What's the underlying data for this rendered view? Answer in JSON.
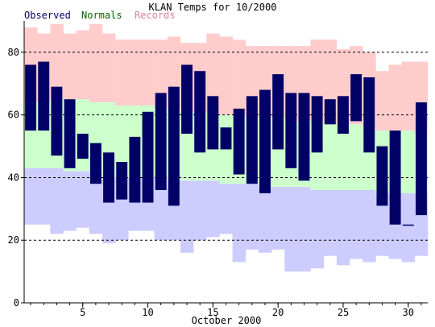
{
  "chart_data": {
    "type": "bar",
    "title": "KLAN Temps for 10/2000",
    "xlabel": "October 2000",
    "ylabel": "",
    "ylim": [
      0,
      90
    ],
    "xlim": [
      0.5,
      31.5
    ],
    "y_ticks": [
      0,
      20,
      40,
      60,
      80
    ],
    "y_tick_labels": [
      "0",
      "20",
      "40",
      "60",
      "80"
    ],
    "y_gridlines": [
      20,
      40,
      60,
      80
    ],
    "x_ticks": [
      5,
      10,
      15,
      20,
      25,
      30
    ],
    "x_tick_labels": [
      "5",
      "10",
      "15",
      "20",
      "25",
      "30"
    ],
    "days": [
      1,
      2,
      3,
      4,
      5,
      6,
      7,
      8,
      9,
      10,
      11,
      12,
      13,
      14,
      15,
      16,
      17,
      18,
      19,
      20,
      21,
      22,
      23,
      24,
      25,
      26,
      27,
      28,
      29,
      30,
      31
    ],
    "legend": [
      {
        "label": "Observed",
        "color": "#000066"
      },
      {
        "label": "Normals",
        "color": "#006600"
      },
      {
        "label": "Records",
        "color": "#e080a0"
      }
    ],
    "colors": {
      "observed": "#000066",
      "normals": "#ccffcc",
      "record_high_band": "#ffcccc",
      "record_low_band": "#ccccff",
      "grid": "#000000"
    },
    "series": [
      {
        "name": "Observed",
        "high": [
          76,
          77,
          69,
          65,
          54,
          51,
          48,
          45,
          53,
          61,
          67,
          69,
          76,
          74,
          66,
          56,
          62,
          66,
          68,
          73,
          67,
          67,
          66,
          65,
          66,
          73,
          72,
          50,
          55,
          25,
          64
        ],
        "low": [
          55,
          55,
          47,
          43,
          46,
          38,
          32,
          33,
          32,
          32,
          36,
          31,
          54,
          48,
          49,
          49,
          41,
          38,
          35,
          49,
          43,
          39,
          48,
          57,
          54,
          58,
          48,
          31,
          25,
          25,
          28
        ]
      },
      {
        "name": "Normals",
        "high": [
          64,
          64,
          65,
          65,
          65,
          64,
          64,
          63,
          63,
          63,
          62,
          62,
          61,
          61,
          60,
          60,
          60,
          59,
          59,
          59,
          58,
          58,
          58,
          57,
          57,
          57,
          56,
          55,
          55,
          55,
          54
        ],
        "low": [
          43,
          43,
          43,
          42,
          42,
          41,
          40,
          40,
          40,
          40,
          40,
          39,
          39,
          39,
          39,
          38,
          38,
          38,
          37,
          37,
          37,
          37,
          36,
          36,
          36,
          36,
          36,
          35,
          35,
          35,
          35
        ]
      },
      {
        "name": "Records",
        "high": [
          88,
          86,
          89,
          86,
          87,
          89,
          86,
          84,
          84,
          84,
          84,
          85,
          83,
          83,
          86,
          85,
          84,
          82,
          82,
          82,
          82,
          82,
          84,
          84,
          81,
          82,
          80,
          74,
          76,
          77,
          77
        ],
        "low": [
          25,
          25,
          22,
          23,
          24,
          22,
          19,
          20,
          23,
          23,
          20,
          20,
          16,
          20,
          21,
          22,
          13,
          17,
          16,
          17,
          10,
          10,
          11,
          15,
          12,
          14,
          13,
          15,
          14,
          13,
          15
        ]
      }
    ]
  }
}
